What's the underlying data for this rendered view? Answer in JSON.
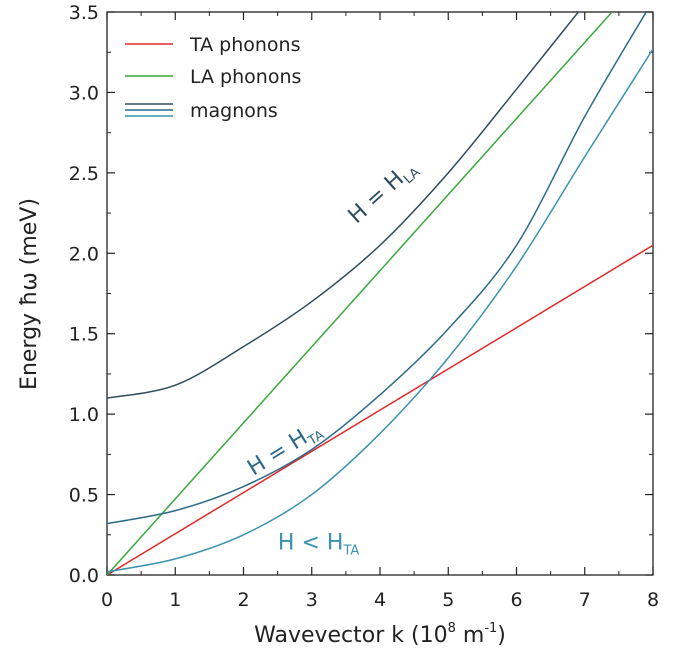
{
  "chart_data": {
    "type": "line",
    "xlabel": "Wavevector k (10",
    "xlabel_exp1": "8",
    "xlabel_mid": " m",
    "xlabel_exp2": "-1",
    "xlabel_end": ")",
    "ylabel": "Energy ħω (meV)",
    "xlim": [
      0,
      8
    ],
    "ylim": [
      0,
      3.5
    ],
    "xticks": [
      "0",
      "1",
      "2",
      "3",
      "4",
      "5",
      "6",
      "7",
      "8"
    ],
    "yticks": [
      "0.0",
      "0.5",
      "1.0",
      "1.5",
      "2.0",
      "2.5",
      "3.0",
      "3.5"
    ],
    "grid": false,
    "legend_position": "top-left",
    "legend": [
      {
        "label": "TA phonons",
        "color": "#e02a2a"
      },
      {
        "label": "LA phonons",
        "color": "#3aa83a"
      },
      {
        "label": "magnons",
        "colors": [
          "#2d4d5c",
          "#2a6a88",
          "#3a92b0"
        ]
      }
    ],
    "series": [
      {
        "name": "TA phonons",
        "color": "#e02a2a",
        "x": [
          0,
          8
        ],
        "y": [
          0,
          2.05
        ]
      },
      {
        "name": "LA phonons",
        "color": "#3aa83a",
        "x": [
          0,
          7.4
        ],
        "y": [
          0,
          3.5
        ]
      },
      {
        "color": "#2d4d5c",
        "x": [
          0,
          1,
          2,
          3,
          4,
          5,
          6,
          7
        ],
        "y": [
          1.1,
          1.18,
          1.42,
          1.7,
          2.05,
          2.5,
          3.02,
          3.55
        ]
      },
      {
        "color": "#2a6a88",
        "x": [
          0,
          1,
          2,
          3,
          4,
          5,
          6,
          7,
          7.9
        ],
        "y": [
          0.32,
          0.4,
          0.55,
          0.78,
          1.12,
          1.53,
          2.05,
          2.85,
          3.5
        ]
      },
      {
        "color": "#3a92b0",
        "x": [
          0,
          1,
          2,
          3,
          4,
          5,
          6,
          7,
          8
        ],
        "y": [
          0.02,
          0.1,
          0.25,
          0.5,
          0.88,
          1.35,
          1.92,
          2.6,
          3.27
        ]
      }
    ],
    "annotations": [
      {
        "main": "H = H",
        "sub": "LA",
        "color": "#2d4d5c",
        "x": 4.1,
        "y": 2.35,
        "angle": -42
      },
      {
        "main": "H = H",
        "sub": "TA",
        "color": "#2a6a88",
        "x": 2.65,
        "y": 0.75,
        "angle": -32
      },
      {
        "main": "H < H",
        "sub": "TA",
        "color": "#3a92b0",
        "x": 3.1,
        "y": 0.16,
        "angle": 0
      }
    ]
  }
}
